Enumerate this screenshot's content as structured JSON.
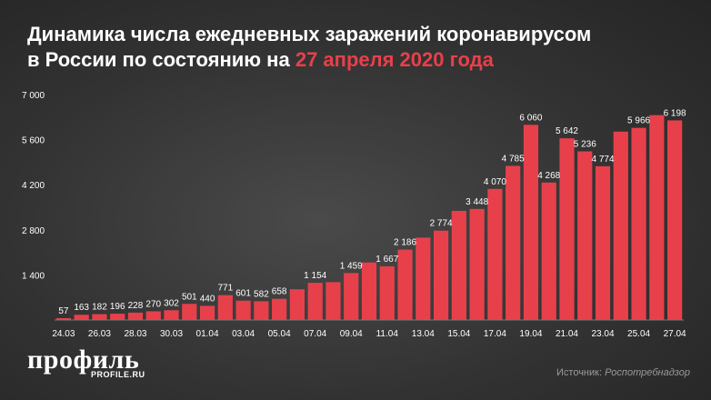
{
  "title": {
    "line1": "Динамика числа ежедневных заражений коронавирусом",
    "line2_prefix": "в России по состоянию на",
    "line2_highlight": "27 апреля 2020 года"
  },
  "colors": {
    "accent": "#e8404a",
    "bar": "#e8404a",
    "background": "#333333",
    "text": "#ffffff"
  },
  "logo": {
    "name": "профиль",
    "site": "PROFILE.RU"
  },
  "source": {
    "label": "Источник:",
    "name": "Роспотребнадзор"
  },
  "chart_data": {
    "type": "bar",
    "title": "Динамика числа ежедневных заражений коронавирусом в России по состоянию на 27 апреля 2020 года",
    "xlabel": "",
    "ylabel": "",
    "ylim": [
      0,
      7000
    ],
    "yticks": [
      1400,
      2800,
      4200,
      5600,
      7000
    ],
    "ytick_labels": [
      "1 400",
      "2 800",
      "4 200",
      "5 600",
      "7 000"
    ],
    "grid": false,
    "categories": [
      "24.03",
      "25.03",
      "26.03",
      "27.03",
      "28.03",
      "29.03",
      "30.03",
      "31.03",
      "01.04",
      "02.04",
      "03.04",
      "04.04",
      "05.04",
      "06.04",
      "07.04",
      "08.04",
      "09.04",
      "10.04",
      "11.04",
      "12.04",
      "13.04",
      "14.04",
      "15.04",
      "16.04",
      "17.04",
      "18.04",
      "19.04",
      "20.04",
      "21.04",
      "22.04",
      "23.04",
      "24.04",
      "25.04",
      "26.04",
      "27.04"
    ],
    "x_tick_labels": [
      "24.03",
      "26.03",
      "28.03",
      "30.03",
      "01.04",
      "03.04",
      "05.04",
      "07.04",
      "09.04",
      "11.04",
      "13.04",
      "15.04",
      "17.04",
      "19.04",
      "21.04",
      "23.04",
      "25.04",
      "27.04"
    ],
    "values": [
      57,
      163,
      182,
      196,
      228,
      270,
      302,
      501,
      440,
      771,
      601,
      582,
      658,
      954,
      1154,
      1175,
      1459,
      1786,
      1667,
      2186,
      2558,
      2774,
      3388,
      3448,
      4070,
      4785,
      6060,
      4268,
      5642,
      5236,
      4774,
      5849,
      5966,
      6361,
      6198
    ],
    "data_labels": [
      {
        "index": 0,
        "text": "57"
      },
      {
        "index": 1,
        "text": "163"
      },
      {
        "index": 2,
        "text": "182"
      },
      {
        "index": 3,
        "text": "196"
      },
      {
        "index": 4,
        "text": "228"
      },
      {
        "index": 5,
        "text": "270"
      },
      {
        "index": 6,
        "text": "302"
      },
      {
        "index": 7,
        "text": "501"
      },
      {
        "index": 8,
        "text": "440"
      },
      {
        "index": 9,
        "text": "771"
      },
      {
        "index": 10,
        "text": "601"
      },
      {
        "index": 11,
        "text": "582"
      },
      {
        "index": 12,
        "text": "658"
      },
      {
        "index": 14,
        "text": "1 154"
      },
      {
        "index": 16,
        "text": "1 459"
      },
      {
        "index": 18,
        "text": "1 667"
      },
      {
        "index": 19,
        "text": "2 186"
      },
      {
        "index": 21,
        "text": "2 774"
      },
      {
        "index": 23,
        "text": "3 448"
      },
      {
        "index": 24,
        "text": "4 070"
      },
      {
        "index": 25,
        "text": "4 785"
      },
      {
        "index": 26,
        "text": "6 060"
      },
      {
        "index": 27,
        "text": "4 268"
      },
      {
        "index": 28,
        "text": "5 642"
      },
      {
        "index": 29,
        "text": "5 236"
      },
      {
        "index": 30,
        "text": "4 774"
      },
      {
        "index": 32,
        "text": "5 966"
      },
      {
        "index": 34,
        "text": "6 198"
      }
    ]
  }
}
